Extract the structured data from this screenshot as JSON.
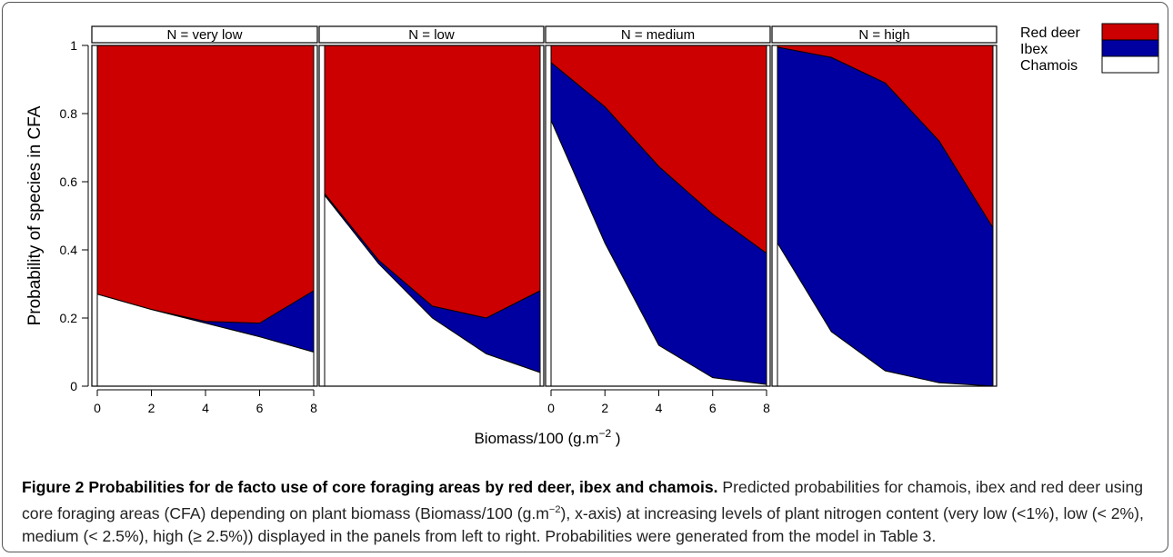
{
  "chart_data": {
    "type": "area",
    "stacked": true,
    "ylabel": "Probability of species in CFA",
    "xlabel": "Biomass/100 (g.m",
    "xlabel_sup": "−2",
    "xlabel_close": ")",
    "ylim": [
      0,
      1
    ],
    "xlim": [
      0,
      8
    ],
    "y_ticks": [
      "0",
      "0.2",
      "0.4",
      "0.6",
      "0.8",
      "1"
    ],
    "x_ticks": [
      "0",
      "2",
      "4",
      "6",
      "8"
    ],
    "x_ticks_shown_on_panels": [
      0,
      2
    ],
    "legend_position": "top-right, outside plot",
    "legend": [
      {
        "name": "Red deer",
        "color": "#cc0000"
      },
      {
        "name": "Ibex",
        "color": "#0000a0"
      },
      {
        "name": "Chamois",
        "color": "#ffffff"
      }
    ],
    "x": [
      0,
      2,
      4,
      6,
      8
    ],
    "panels": [
      {
        "title": "N = very low",
        "chamois": [
          0.27,
          0.225,
          0.185,
          0.145,
          0.1
        ],
        "chamois_plus_ibex": [
          0.27,
          0.225,
          0.19,
          0.185,
          0.28
        ]
      },
      {
        "title": "N = low",
        "chamois": [
          0.56,
          0.36,
          0.2,
          0.095,
          0.04
        ],
        "chamois_plus_ibex": [
          0.565,
          0.37,
          0.235,
          0.2,
          0.28
        ]
      },
      {
        "title": "N = medium",
        "chamois": [
          0.78,
          0.42,
          0.12,
          0.025,
          0.005
        ],
        "chamois_plus_ibex": [
          0.95,
          0.82,
          0.645,
          0.505,
          0.39
        ]
      },
      {
        "title": "N = high",
        "chamois": [
          0.42,
          0.16,
          0.045,
          0.01,
          0.0
        ],
        "chamois_plus_ibex": [
          0.995,
          0.965,
          0.89,
          0.72,
          0.465
        ]
      }
    ]
  },
  "caption": {
    "label": "Figure 2 Probabilities for de facto use of core foraging areas by red deer, ibex and chamois.",
    "text_before_sup": " Predicted probabilities for chamois, ibex and red deer using core foraging areas (CFA) depending on plant biomass (Biomass/100 (g.m",
    "sup": "−2",
    "text_after_sup": "), x-axis) at increasing levels of plant nitrogen content (very low (<1%), low (< 2%), medium (< 2.5%), high (≥ 2.5%)) displayed in the panels from left to right. Probabilities were generated from the model in Table 3."
  }
}
